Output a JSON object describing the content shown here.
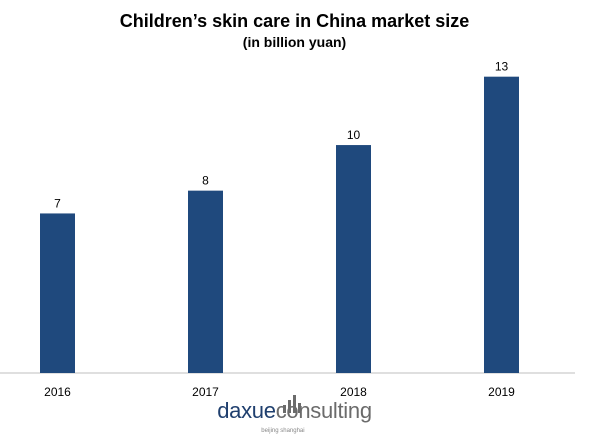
{
  "chart_data": {
    "type": "bar",
    "title": "Children’s skin care in China market size",
    "subtitle": "(in billion yuan)",
    "categories": [
      "2016",
      "2017",
      "2018",
      "2019"
    ],
    "values": [
      7,
      8,
      10,
      13
    ],
    "xlabel": "",
    "ylabel": "",
    "ylim": [
      0,
      13.6
    ],
    "grid": false,
    "bar_color": "#1f497d"
  },
  "logo": {
    "brand_part1": "daxue",
    "brand_part2": "consulting",
    "tagline": "beijing shanghai"
  }
}
